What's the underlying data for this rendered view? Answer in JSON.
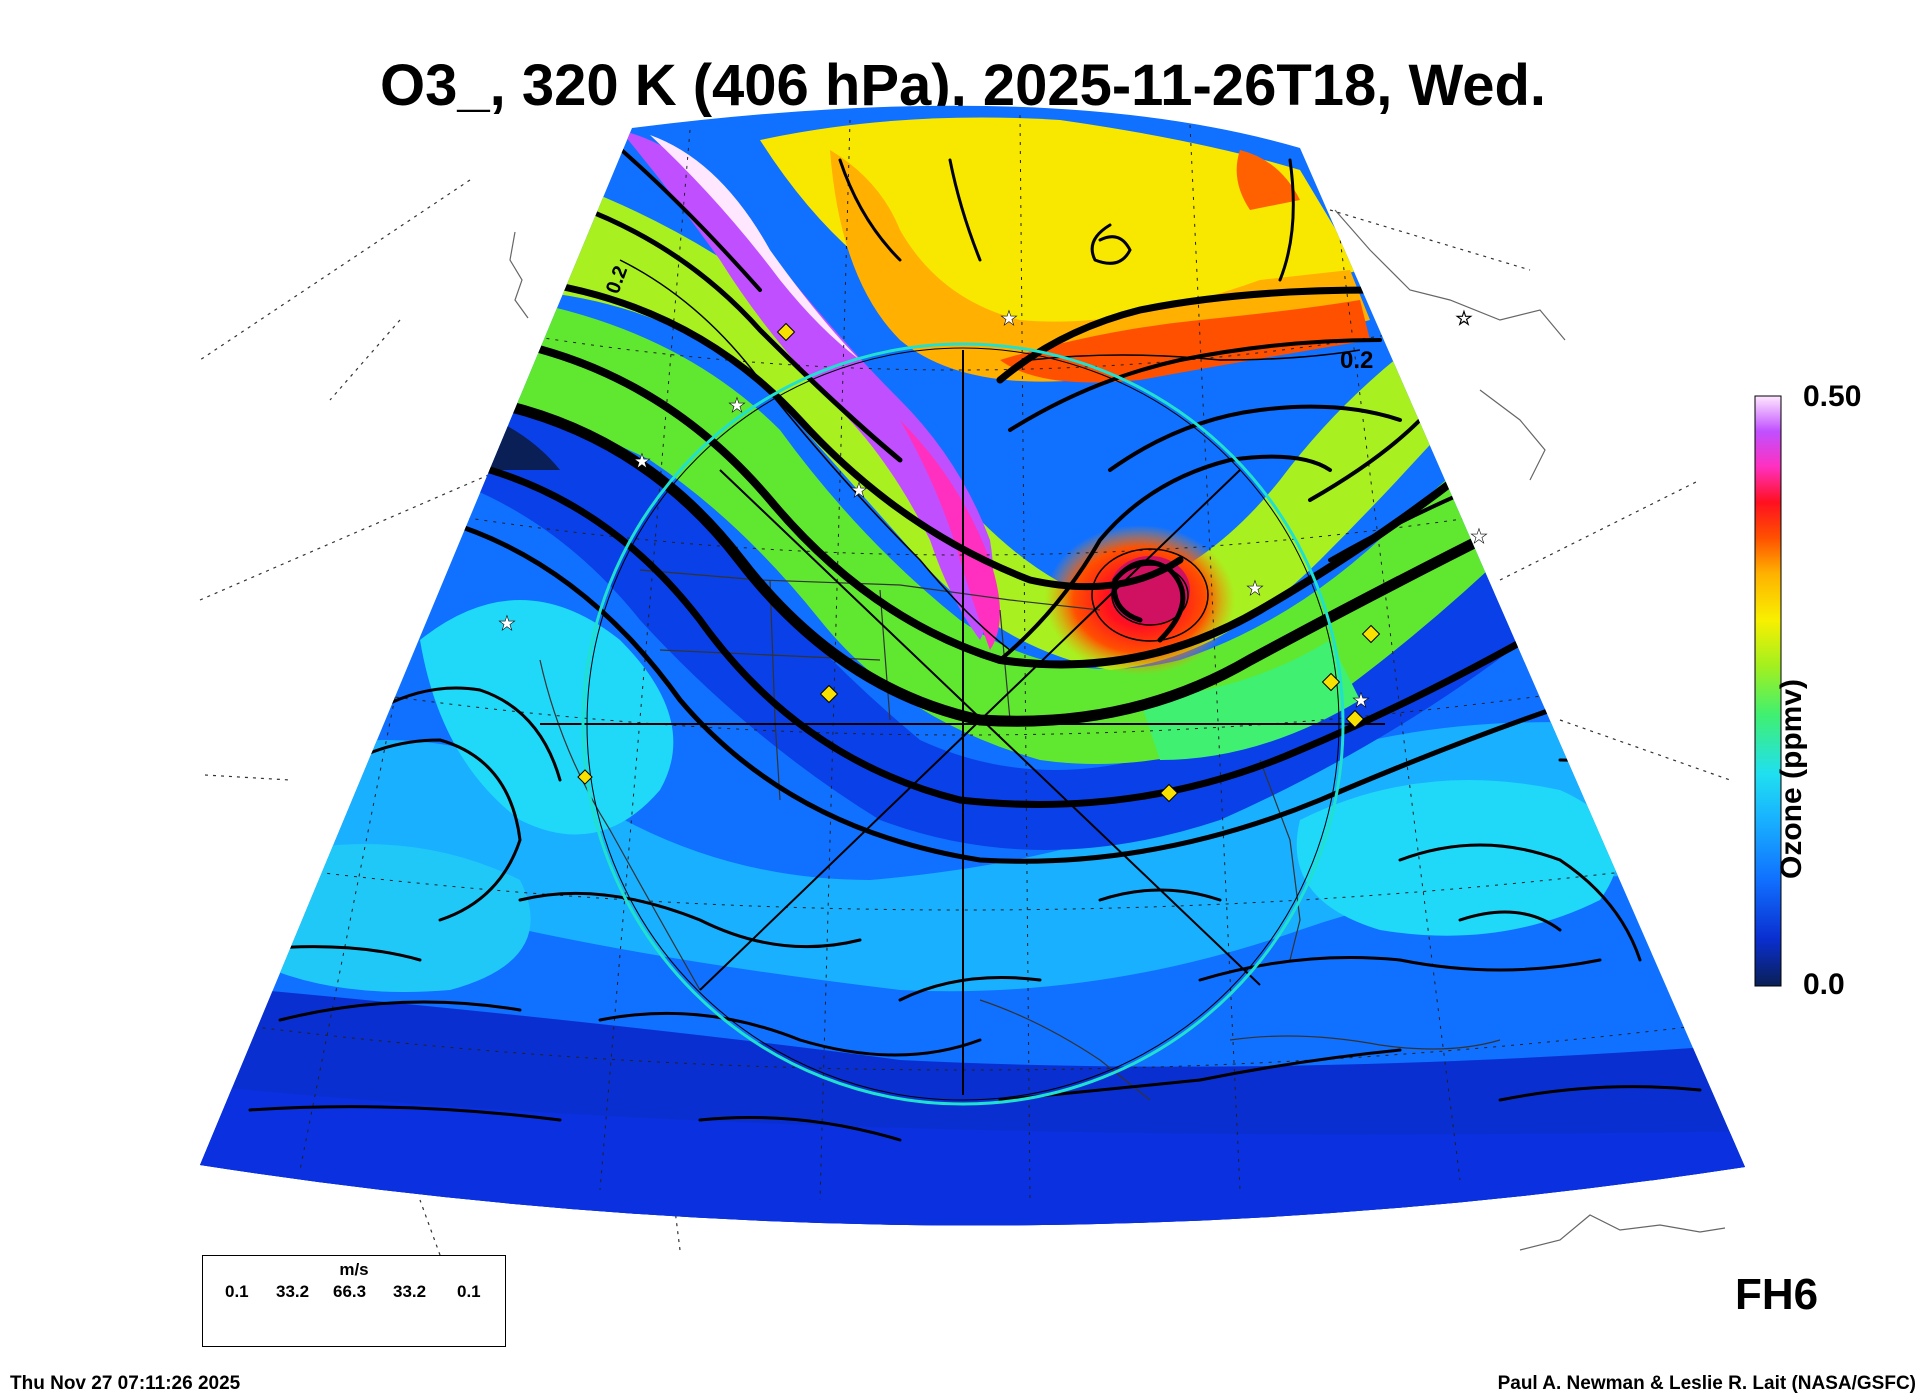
{
  "header": {
    "title": "O3_, 320 K (406 hPa), 2025-11-26T18, Wed."
  },
  "colorbar": {
    "max_label": "0.50",
    "min_label": "0.0",
    "axis_label": "Ozone (ppmv)",
    "stops": [
      "#0a1f55",
      "#0a2fd0",
      "#1070ff",
      "#18b0ff",
      "#20e0f0",
      "#40f070",
      "#a0f020",
      "#f8f000",
      "#ffb000",
      "#ff5000",
      "#ff1020",
      "#ff30c0",
      "#c050ff",
      "#ffe8ff"
    ]
  },
  "map": {
    "contour_label": "0.2",
    "contour_label_2": "0.2"
  },
  "wind_legend": {
    "unit": "m/s",
    "values": [
      "0.1",
      "33.2",
      "66.3",
      "33.2",
      "0.1"
    ]
  },
  "forecast_hour": "FH6",
  "footer": {
    "timestamp": "Thu Nov 27 07:11:26 2025",
    "credit": "Paul A. Newman & Leslie R. Lait (NASA/GSFC)"
  }
}
